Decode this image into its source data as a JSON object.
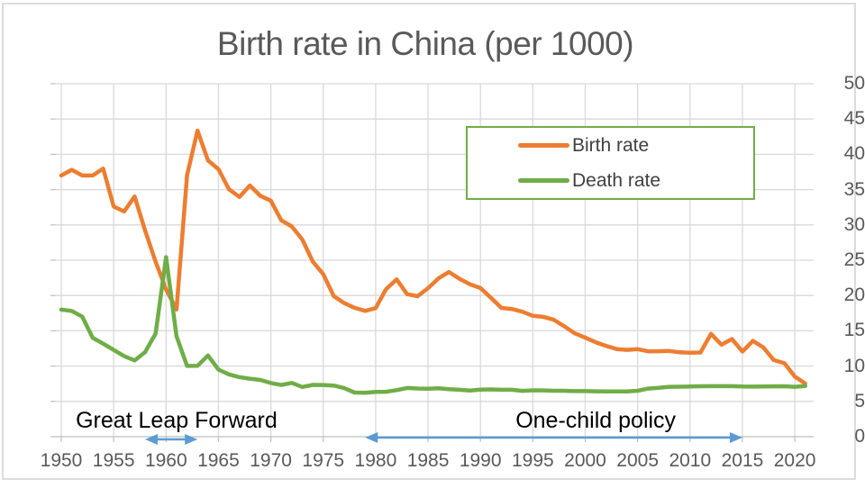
{
  "title": "Birth rate in China (per 1000)",
  "colors": {
    "birth_line": "#ED7D31",
    "death_line": "#70AD47",
    "title_text": "#595959",
    "axis_text": "#595959",
    "gridline": "#D9D9D9",
    "axis_line": "#BFBFBF",
    "annotation_text": "#000000",
    "annotation_arrow": "#5B9BD5",
    "legend_border": "#70AD47",
    "legend_text": "#404040",
    "frame_border": "#DCDCDC"
  },
  "legend": {
    "items": [
      {
        "label": "Birth rate",
        "color": "#ED7D31"
      },
      {
        "label": "Death rate",
        "color": "#70AD47"
      }
    ]
  },
  "chart_data": {
    "type": "line",
    "title": "Birth rate in China (per 1000)",
    "xlabel": "",
    "ylabel": "",
    "grid": true,
    "legend_position": "upper right",
    "ylim": [
      0,
      50
    ],
    "y_ticks": [
      0,
      5,
      10,
      15,
      20,
      25,
      30,
      35,
      40,
      45,
      50
    ],
    "x_ticks": [
      1950,
      1955,
      1960,
      1965,
      1970,
      1975,
      1980,
      1985,
      1990,
      1995,
      2000,
      2005,
      2010,
      2015,
      2020
    ],
    "x": [
      1950,
      1951,
      1952,
      1953,
      1954,
      1955,
      1956,
      1957,
      1958,
      1959,
      1960,
      1961,
      1962,
      1963,
      1964,
      1965,
      1966,
      1967,
      1968,
      1969,
      1970,
      1971,
      1972,
      1973,
      1974,
      1975,
      1976,
      1977,
      1978,
      1979,
      1980,
      1981,
      1982,
      1983,
      1984,
      1985,
      1986,
      1987,
      1988,
      1989,
      1990,
      1991,
      1992,
      1993,
      1994,
      1995,
      1996,
      1997,
      1998,
      1999,
      2000,
      2001,
      2002,
      2003,
      2004,
      2005,
      2006,
      2007,
      2008,
      2009,
      2010,
      2011,
      2012,
      2013,
      2014,
      2015,
      2016,
      2017,
      2018,
      2019,
      2020,
      2021
    ],
    "series": [
      {
        "name": "Birth rate",
        "color": "#ED7D31",
        "values": [
          37.0,
          37.8,
          37.0,
          37.0,
          37.97,
          32.6,
          31.9,
          34.03,
          29.22,
          24.78,
          20.86,
          18.02,
          37.01,
          43.37,
          39.14,
          37.88,
          35.05,
          33.96,
          35.59,
          34.11,
          33.43,
          30.65,
          29.77,
          27.93,
          24.82,
          23.01,
          19.91,
          18.93,
          18.25,
          17.82,
          18.21,
          20.91,
          22.28,
          20.19,
          19.9,
          21.04,
          22.43,
          23.33,
          22.37,
          21.58,
          21.06,
          19.68,
          18.24,
          18.09,
          17.7,
          17.12,
          16.98,
          16.57,
          15.64,
          14.64,
          14.03,
          13.38,
          12.86,
          12.41,
          12.29,
          12.4,
          12.09,
          12.1,
          12.14,
          11.95,
          11.9,
          11.93,
          14.57,
          13.03,
          13.83,
          12.07,
          13.57,
          12.64,
          10.86,
          10.41,
          8.52,
          7.52
        ]
      },
      {
        "name": "Death rate",
        "color": "#70AD47",
        "values": [
          18.0,
          17.8,
          17.0,
          14.0,
          13.18,
          12.28,
          11.4,
          10.8,
          11.98,
          14.59,
          25.43,
          14.24,
          10.02,
          10.04,
          11.5,
          9.5,
          8.83,
          8.43,
          8.21,
          8.03,
          7.6,
          7.32,
          7.61,
          7.04,
          7.34,
          7.32,
          7.25,
          6.87,
          6.25,
          6.21,
          6.34,
          6.36,
          6.6,
          6.9,
          6.82,
          6.78,
          6.86,
          6.72,
          6.64,
          6.54,
          6.67,
          6.7,
          6.64,
          6.64,
          6.49,
          6.57,
          6.56,
          6.51,
          6.5,
          6.46,
          6.45,
          6.43,
          6.41,
          6.4,
          6.42,
          6.51,
          6.81,
          6.93,
          7.06,
          7.08,
          7.11,
          7.14,
          7.15,
          7.16,
          7.16,
          7.11,
          7.09,
          7.11,
          7.13,
          7.14,
          7.07,
          7.18
        ]
      }
    ],
    "annotations": [
      {
        "text": "Great Leap Forward",
        "arrow_span_years": [
          1958,
          1963
        ],
        "label_center_year": 1961
      },
      {
        "text": "One-child policy",
        "arrow_span_years": [
          1979,
          2015
        ],
        "label_center_year": 2001
      }
    ]
  }
}
